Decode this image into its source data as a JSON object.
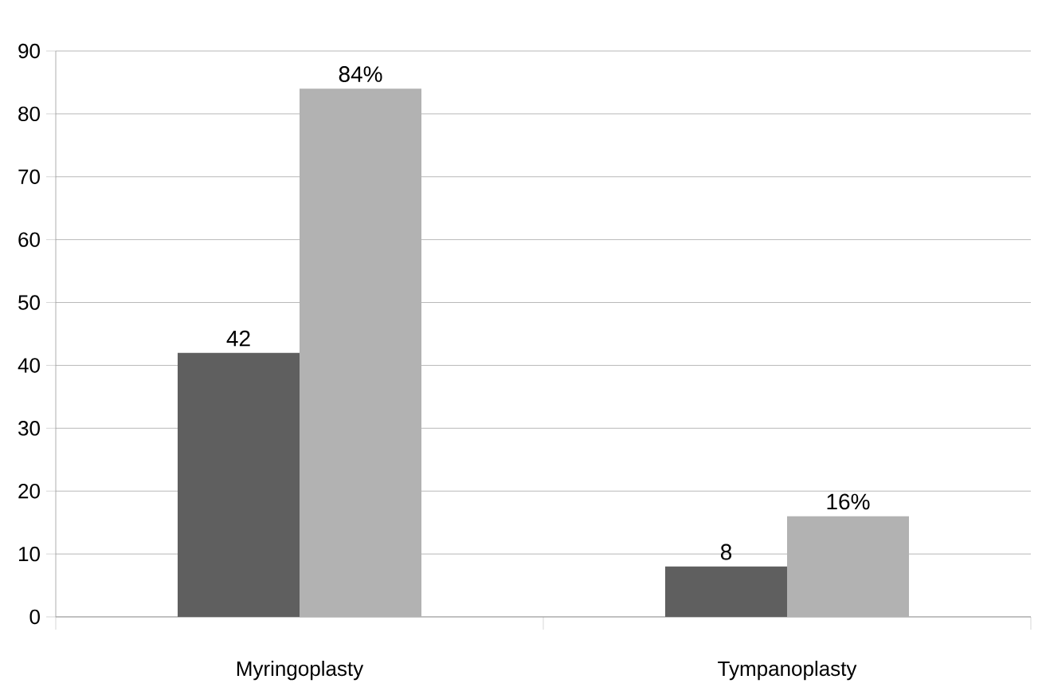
{
  "chart_data": {
    "type": "bar",
    "categories": [
      "Myringoplasty",
      "Tympanoplasty"
    ],
    "series": [
      {
        "color": "#5f5f5f",
        "values": [
          42,
          8
        ],
        "value_labels": [
          "42",
          "8"
        ]
      },
      {
        "color": "#b2b2b2",
        "values": [
          84,
          16
        ],
        "value_labels": [
          "84%",
          "16%"
        ]
      }
    ],
    "ylim": [
      0,
      90
    ],
    "yticks": [
      0,
      10,
      20,
      30,
      40,
      50,
      60,
      70,
      80,
      90
    ],
    "grid": "y"
  }
}
